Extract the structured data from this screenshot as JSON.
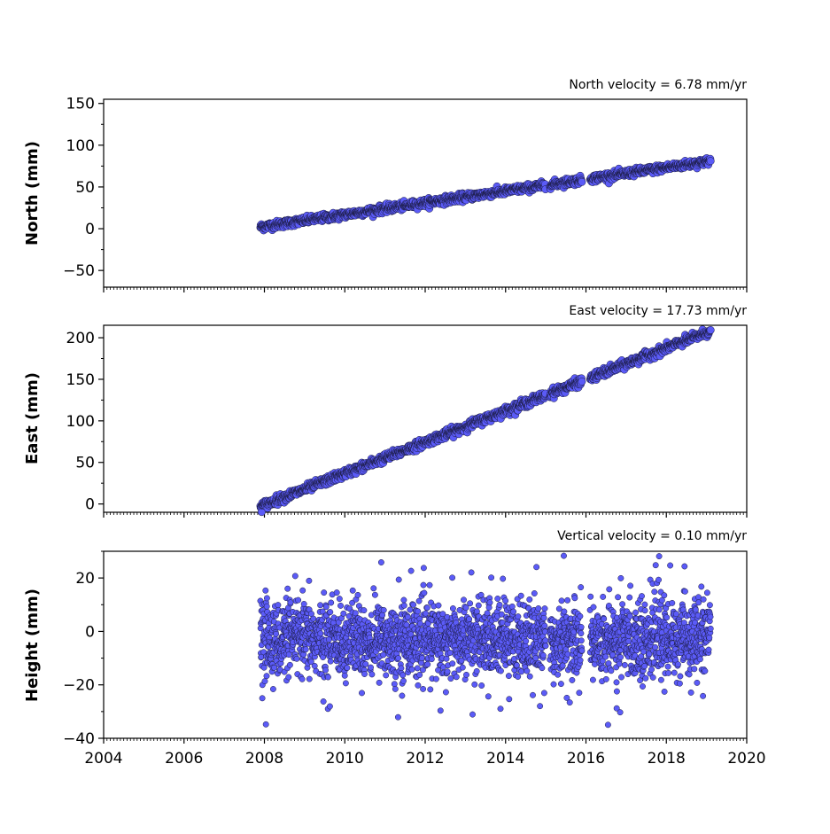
{
  "colors": {
    "point_fill": "#5b5bf7",
    "point_edge": "#1a1a40",
    "axes": "#000000"
  },
  "chart_data": [
    {
      "type": "scatter",
      "ylabel": "North (mm)",
      "annotation": "North velocity = 6.78 mm/yr",
      "xlim": [
        2004,
        2020
      ],
      "ylim": [
        -70,
        155
      ],
      "yticks": [
        150,
        100,
        50,
        0,
        -50
      ],
      "ytick_labels": [
        "150",
        "100",
        "50",
        "0",
        "−50"
      ],
      "series": [
        {
          "x_start": 2007.9,
          "x_end": 2019.1,
          "y_start": 2,
          "y_end": 81,
          "gaps": [
            [
              2015.0,
              2015.1
            ],
            [
              2015.9,
              2016.1
            ]
          ]
        }
      ]
    },
    {
      "type": "scatter",
      "ylabel": "East (mm)",
      "annotation": "East velocity = 17.73 mm/yr",
      "xlim": [
        2004,
        2020
      ],
      "ylim": [
        -10,
        215
      ],
      "yticks": [
        200,
        150,
        100,
        50,
        0
      ],
      "ytick_labels": [
        "200",
        "150",
        "100",
        "50",
        "0"
      ],
      "series": [
        {
          "x_start": 2007.9,
          "x_end": 2019.1,
          "y_start": -3,
          "y_end": 208,
          "gaps": [
            [
              2015.0,
              2015.1
            ],
            [
              2015.9,
              2016.1
            ]
          ]
        }
      ]
    },
    {
      "type": "scatter",
      "ylabel": "Height (mm)",
      "annotation": "Vertical velocity = 0.10 mm/yr",
      "xlim": [
        2004,
        2020
      ],
      "ylim": [
        -40,
        30
      ],
      "yticks": [
        20,
        0,
        -20,
        -40
      ],
      "ytick_labels": [
        "20",
        "0",
        "−20",
        "−40"
      ],
      "xticks": [
        2004,
        2006,
        2008,
        2010,
        2012,
        2014,
        2016,
        2018,
        2020
      ],
      "xtick_labels": [
        "2004",
        "2006",
        "2008",
        "2010",
        "2012",
        "2014",
        "2016",
        "2018",
        "2020"
      ],
      "series": [
        {
          "x_start": 2007.9,
          "x_end": 2019.1,
          "mean": -3,
          "spread": 7,
          "gaps": [
            [
              2015.0,
              2015.1
            ],
            [
              2015.9,
              2016.1
            ]
          ]
        }
      ]
    }
  ]
}
